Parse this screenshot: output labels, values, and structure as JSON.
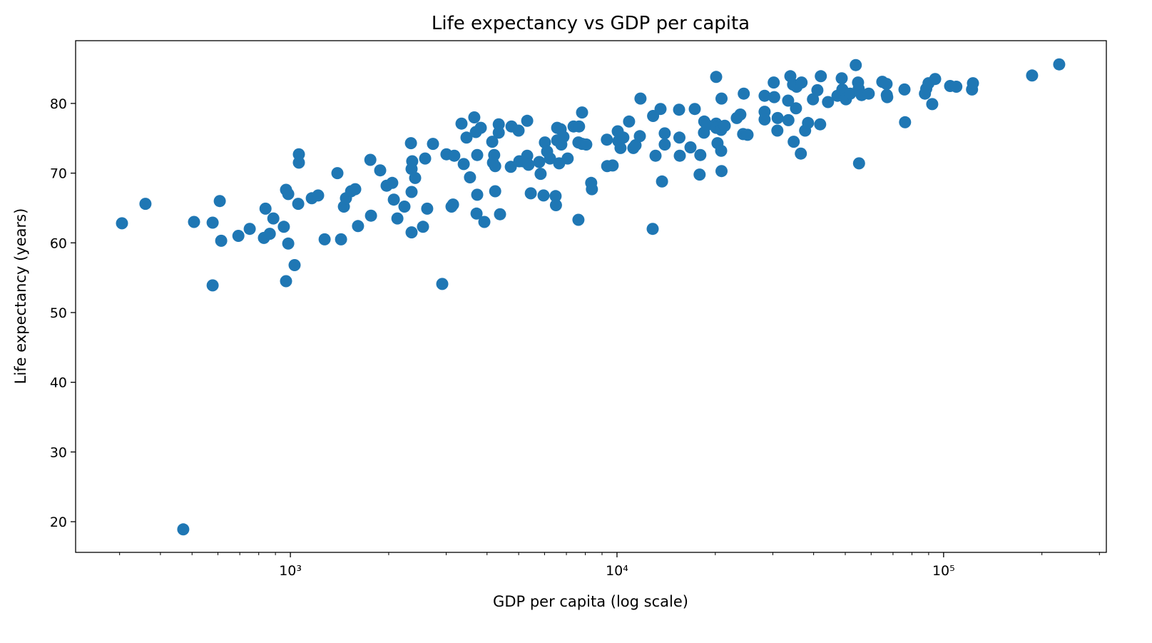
{
  "chart_data": {
    "type": "scatter",
    "title": "Life expectancy vs GDP per capita",
    "xlabel": "GDP per capita (log scale)",
    "ylabel": "Life expectancy (years)",
    "xscale": "log",
    "xlim": [
      220,
      315000
    ],
    "ylim": [
      15.6,
      89.0
    ],
    "xticks": [
      1000,
      10000,
      100000
    ],
    "xtick_labels": [
      "10³",
      "10⁴",
      "10⁵"
    ],
    "yticks": [
      20,
      30,
      40,
      50,
      60,
      70,
      80
    ],
    "ytick_labels": [
      "20",
      "30",
      "40",
      "50",
      "60",
      "70",
      "80"
    ],
    "grid": false,
    "color": "#1f77b4",
    "points": [
      [
        305,
        62.8
      ],
      [
        360,
        65.6
      ],
      [
        470,
        18.9
      ],
      [
        507,
        63.0
      ],
      [
        578,
        62.9
      ],
      [
        578,
        53.9
      ],
      [
        608,
        66.0
      ],
      [
        614,
        60.3
      ],
      [
        693,
        61.0
      ],
      [
        751,
        62.0
      ],
      [
        839,
        64.9
      ],
      [
        830,
        60.7
      ],
      [
        865,
        61.3
      ],
      [
        887,
        63.5
      ],
      [
        955,
        62.3
      ],
      [
        970,
        67.6
      ],
      [
        985,
        67.0
      ],
      [
        985,
        59.9
      ],
      [
        970,
        54.5
      ],
      [
        1030,
        56.8
      ],
      [
        1057,
        65.6
      ],
      [
        1062,
        72.7
      ],
      [
        1062,
        71.5
      ],
      [
        1163,
        66.4
      ],
      [
        1216,
        66.8
      ],
      [
        1273,
        60.5
      ],
      [
        1393,
        70.0
      ],
      [
        1429,
        60.5
      ],
      [
        1458,
        65.2
      ],
      [
        1480,
        66.4
      ],
      [
        1534,
        67.4
      ],
      [
        1580,
        67.7
      ],
      [
        1611,
        62.4
      ],
      [
        1757,
        71.9
      ],
      [
        1765,
        63.9
      ],
      [
        1884,
        70.4
      ],
      [
        1971,
        68.2
      ],
      [
        2051,
        68.6
      ],
      [
        2074,
        66.2
      ],
      [
        2126,
        63.5
      ],
      [
        2235,
        65.2
      ],
      [
        2339,
        74.3
      ],
      [
        2361,
        71.7
      ],
      [
        2350,
        70.6
      ],
      [
        2350,
        67.3
      ],
      [
        2410,
        69.3
      ],
      [
        2350,
        61.5
      ],
      [
        2547,
        62.3
      ],
      [
        2586,
        72.1
      ],
      [
        2624,
        64.9
      ],
      [
        2733,
        74.2
      ],
      [
        2917,
        54.1
      ],
      [
        3006,
        72.7
      ],
      [
        3114,
        65.2
      ],
      [
        3147,
        65.5
      ],
      [
        3177,
        72.5
      ],
      [
        3342,
        77.1
      ],
      [
        3394,
        71.3
      ],
      [
        3462,
        75.1
      ],
      [
        3548,
        69.4
      ],
      [
        3656,
        78.0
      ],
      [
        3698,
        75.9
      ],
      [
        3733,
        66.9
      ],
      [
        3715,
        64.2
      ],
      [
        3733,
        72.6
      ],
      [
        3828,
        76.5
      ],
      [
        3926,
        63.0
      ],
      [
        4150,
        74.5
      ],
      [
        4171,
        71.5
      ],
      [
        4207,
        72.6
      ],
      [
        4236,
        71.0
      ],
      [
        4236,
        67.4
      ],
      [
        4345,
        77.0
      ],
      [
        4345,
        75.8
      ],
      [
        4385,
        64.1
      ],
      [
        4730,
        70.9
      ],
      [
        4754,
        76.7
      ],
      [
        4997,
        76.1
      ],
      [
        5022,
        71.7
      ],
      [
        5152,
        71.7
      ],
      [
        5309,
        77.5
      ],
      [
        5309,
        72.5
      ],
      [
        5358,
        71.2
      ],
      [
        5445,
        67.1
      ],
      [
        5781,
        71.6
      ],
      [
        5836,
        69.9
      ],
      [
        5957,
        66.8
      ],
      [
        6016,
        74.4
      ],
      [
        6109,
        73.1
      ],
      [
        6237,
        72.1
      ],
      [
        6486,
        66.7
      ],
      [
        6502,
        65.4
      ],
      [
        6559,
        76.5
      ],
      [
        6559,
        74.7
      ],
      [
        6653,
        71.4
      ],
      [
        6722,
        76.3
      ],
      [
        6752,
        74.1
      ],
      [
        6855,
        75.2
      ],
      [
        7064,
        72.1
      ],
      [
        7362,
        76.7
      ],
      [
        7656,
        76.7
      ],
      [
        7621,
        63.3
      ],
      [
        7621,
        74.4
      ],
      [
        7816,
        78.7
      ],
      [
        7816,
        74.2
      ],
      [
        8054,
        74.1
      ],
      [
        8337,
        68.6
      ],
      [
        8379,
        67.7
      ],
      [
        9311,
        74.8
      ],
      [
        9332,
        71.0
      ],
      [
        9700,
        71.1
      ],
      [
        10050,
        76.0
      ],
      [
        10100,
        74.6
      ],
      [
        10250,
        73.6
      ],
      [
        10460,
        75.1
      ],
      [
        10890,
        77.4
      ],
      [
        11220,
        73.6
      ],
      [
        11400,
        74.0
      ],
      [
        11800,
        80.7
      ],
      [
        11750,
        75.3
      ],
      [
        12860,
        62.0
      ],
      [
        12900,
        78.2
      ],
      [
        13120,
        72.5
      ],
      [
        13590,
        79.2
      ],
      [
        13740,
        68.8
      ],
      [
        14000,
        75.7
      ],
      [
        14000,
        74.1
      ],
      [
        15490,
        79.1
      ],
      [
        15530,
        75.1
      ],
      [
        15570,
        72.5
      ],
      [
        16790,
        73.7
      ],
      [
        17300,
        79.2
      ],
      [
        17910,
        69.8
      ],
      [
        18000,
        72.6
      ],
      [
        18460,
        75.8
      ],
      [
        18500,
        77.4
      ],
      [
        18840,
        76.9
      ],
      [
        20120,
        83.8
      ],
      [
        20120,
        77.1
      ],
      [
        20310,
        74.3
      ],
      [
        20120,
        76.5
      ],
      [
        20840,
        76.2
      ],
      [
        20890,
        80.7
      ],
      [
        20890,
        70.3
      ],
      [
        20840,
        73.2
      ],
      [
        21370,
        76.8
      ],
      [
        23270,
        77.9
      ],
      [
        23860,
        78.4
      ],
      [
        24330,
        75.6
      ],
      [
        24440,
        81.4
      ],
      [
        25100,
        75.5
      ],
      [
        28310,
        81.1
      ],
      [
        28310,
        78.8
      ],
      [
        28310,
        77.7
      ],
      [
        30200,
        83.0
      ],
      [
        30300,
        80.9
      ],
      [
        30970,
        76.1
      ],
      [
        31040,
        77.9
      ],
      [
        33420,
        80.4
      ],
      [
        33490,
        77.6
      ],
      [
        33950,
        83.9
      ],
      [
        34600,
        82.7
      ],
      [
        34750,
        74.5
      ],
      [
        35320,
        79.3
      ],
      [
        35480,
        82.4
      ],
      [
        36560,
        72.8
      ],
      [
        36730,
        83.0
      ],
      [
        37670,
        76.1
      ],
      [
        38460,
        77.2
      ],
      [
        39810,
        80.6
      ],
      [
        41080,
        81.9
      ],
      [
        41880,
        77.0
      ],
      [
        42080,
        83.9
      ],
      [
        44260,
        80.2
      ],
      [
        47300,
        81.1
      ],
      [
        48750,
        83.6
      ],
      [
        48970,
        82.0
      ],
      [
        50220,
        80.6
      ],
      [
        51760,
        81.4
      ],
      [
        53830,
        85.5
      ],
      [
        54700,
        83.0
      ],
      [
        54950,
        82.1
      ],
      [
        55100,
        71.4
      ],
      [
        56100,
        81.2
      ],
      [
        59000,
        81.4
      ],
      [
        64900,
        83.1
      ],
      [
        66900,
        82.8
      ],
      [
        67000,
        81.2
      ],
      [
        67200,
        80.9
      ],
      [
        75900,
        82.0
      ],
      [
        76200,
        77.3
      ],
      [
        87700,
        81.4
      ],
      [
        88500,
        82.1
      ],
      [
        89900,
        82.9
      ],
      [
        92300,
        79.9
      ],
      [
        94200,
        83.5
      ],
      [
        104700,
        82.5
      ],
      [
        109400,
        82.4
      ],
      [
        122200,
        82.0
      ],
      [
        123000,
        82.9
      ],
      [
        186600,
        84.0
      ],
      [
        225900,
        85.6
      ]
    ]
  }
}
